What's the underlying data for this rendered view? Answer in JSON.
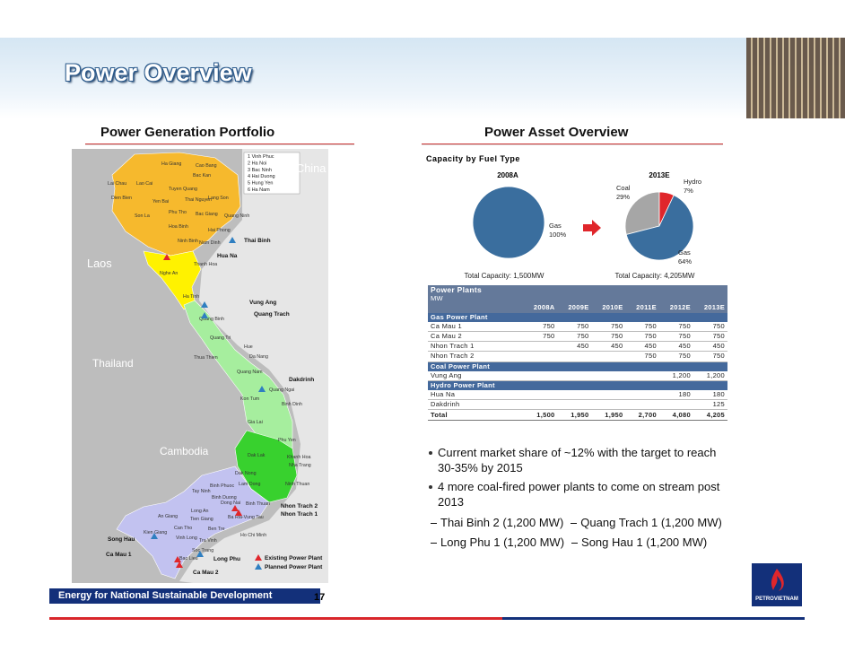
{
  "header": {
    "title": "Power Overview"
  },
  "left": {
    "heading": "Power Generation Portfolio",
    "map": {
      "countries": [
        "China",
        "Laos",
        "Thailand",
        "Cambodia"
      ],
      "numbered": [
        "1 Vinh Phuc",
        "2 Ha Noi",
        "3 Bac Ninh",
        "4 Hai Duong",
        "5 Hung Yen",
        "6 Ha Nam"
      ],
      "provinces": [
        "Ha Giang",
        "Cao Bang",
        "Lai Chau",
        "Lao Cai",
        "Tuyen Quang",
        "Bac Kan",
        "Lang Son",
        "Dien Bien",
        "Yen Bai",
        "Thai Nguyen",
        "Son La",
        "Phu Tho",
        "Bac Giang",
        "Quang Ninh",
        "Hai Phong",
        "Hoa Binh",
        "Ninh Binh",
        "Nam Dinh",
        "Thanh Hoa",
        "Nghe An",
        "Ha Tinh",
        "Quang Binh",
        "Quang Tri",
        "Hue",
        "Thua Thien",
        "Da Nang",
        "Quang Nam",
        "Quang Ngai",
        "Kon Tum",
        "Binh Dinh",
        "Gia Lai",
        "Phu Yen",
        "Dak Lak",
        "Khanh Hoa",
        "Nha Trang",
        "Dak Nong",
        "Lam Dong",
        "Ninh Thuan",
        "Binh Phuoc",
        "Tay Ninh",
        "Binh Duong",
        "Dong Nai",
        "Binh Thuan",
        "Ba Ria-Vung Tau",
        "Ho Chi Minh",
        "Long An",
        "Tien Giang",
        "An Giang",
        "Kien Giang",
        "Can Tho",
        "Ben Tre",
        "Vinh Long",
        "Tra Vinh",
        "Soc Trang",
        "Bac Lieu"
      ],
      "plants": [
        {
          "name": "Thai Binh",
          "status": "planned"
        },
        {
          "name": "Hua Na",
          "status": "existing"
        },
        {
          "name": "Vung Ang",
          "status": "planned"
        },
        {
          "name": "Quang Trach",
          "status": "planned"
        },
        {
          "name": "Dakdrinh",
          "status": "planned"
        },
        {
          "name": "Nhon Trach 2",
          "status": "existing"
        },
        {
          "name": "Nhon Trach 1",
          "status": "existing"
        },
        {
          "name": "Song Hau",
          "status": "planned"
        },
        {
          "name": "Ca Mau 1",
          "status": "existing"
        },
        {
          "name": "Long Phu",
          "status": "planned"
        },
        {
          "name": "Ca Mau 2",
          "status": "existing"
        }
      ],
      "legend": {
        "existing": "Existing Power Plant",
        "planned": "Planned Power Plant"
      }
    }
  },
  "right": {
    "heading": "Power Asset Overview"
  },
  "chart_data": {
    "type": "pie",
    "title": "Capacity by Fuel Type",
    "pies": [
      {
        "label": "2008A",
        "categories": [
          "Gas"
        ],
        "values": [
          100
        ],
        "value_labels": [
          "100%"
        ],
        "colors": [
          "#3a6e9e"
        ],
        "total": "Total Capacity: 1,500MW"
      },
      {
        "label": "2013E",
        "categories": [
          "Coal",
          "Hydro",
          "Gas"
        ],
        "values": [
          29,
          7,
          64
        ],
        "value_labels": [
          "29%",
          "7%",
          "64%"
        ],
        "colors": [
          "#a6a6a6",
          "#e0262b",
          "#3a6e9e"
        ],
        "total": "Total Capacity: 4,205MW"
      }
    ]
  },
  "table": {
    "title": "Power Plants",
    "unit": "MW",
    "columns": [
      "2008A",
      "2009E",
      "2010E",
      "2011E",
      "2012E",
      "2013E"
    ],
    "rows": [
      {
        "section": "Gas Power Plant"
      },
      {
        "label": "Ca Mau 1",
        "cells": [
          "750",
          "750",
          "750",
          "750",
          "750",
          "750"
        ]
      },
      {
        "label": "Ca Mau 2",
        "cells": [
          "750",
          "750",
          "750",
          "750",
          "750",
          "750"
        ]
      },
      {
        "label": "Nhon Trach 1",
        "cells": [
          null,
          "450",
          "450",
          "450",
          "450",
          "450"
        ]
      },
      {
        "label": "Nhon Trach 2",
        "cells": [
          null,
          null,
          null,
          "750",
          "750",
          "750"
        ]
      },
      {
        "section": "Coal Power Plant"
      },
      {
        "label": "Vung Ang",
        "cells": [
          null,
          null,
          null,
          null,
          "1,200",
          "1,200"
        ]
      },
      {
        "section": "Hydro Power Plant"
      },
      {
        "label": "Hua Na",
        "cells": [
          null,
          null,
          null,
          null,
          "180",
          "180"
        ]
      },
      {
        "label": "Dakdrinh",
        "cells": [
          null,
          null,
          null,
          null,
          null,
          "125"
        ]
      }
    ],
    "total": {
      "label": "Total",
      "cells": [
        "1,500",
        "1,950",
        "1,950",
        "2,700",
        "4,080",
        "4,205"
      ]
    }
  },
  "bullets": [
    "Current market share of ~12% with the target to reach 30-35% by 2015",
    "4 more coal-fired power plants to come on stream post 2013"
  ],
  "sub_bullets": [
    [
      "Thai Binh 2 (1,200 MW)",
      "Quang Trach 1 (1,200 MW)"
    ],
    [
      "Long Phu 1 (1,200 MW)",
      "Song Hau 1 (1,200 MW)"
    ]
  ],
  "footer": {
    "tagline": "Energy for National Sustainable Development",
    "page": "17",
    "logo": "PETROVIETNAM"
  }
}
